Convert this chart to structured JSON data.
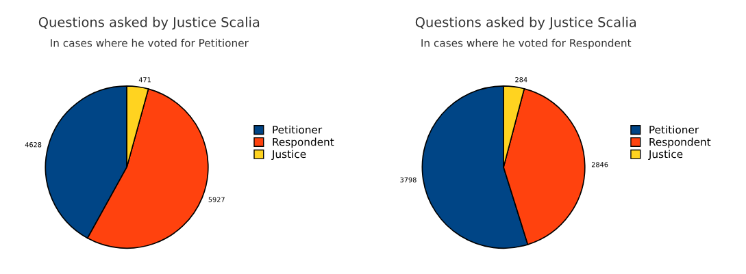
{
  "chart_data": [
    {
      "type": "pie",
      "title": "Questions asked by Justice Scalia",
      "subtitle": "In cases where he voted for Petitioner",
      "categories": [
        "Petitioner",
        "Respondent",
        "Justice"
      ],
      "values": [
        4628,
        5927,
        471
      ],
      "colors": [
        "#004586",
        "#ff420e",
        "#ffd320"
      ],
      "data_labels": true,
      "legend": "right"
    },
    {
      "type": "pie",
      "title": "Questions asked by Justice Scalia",
      "subtitle": "In cases where he voted for Respondent",
      "categories": [
        "Petitioner",
        "Respondent",
        "Justice"
      ],
      "values": [
        3798,
        2846,
        284
      ],
      "colors": [
        "#004586",
        "#ff420e",
        "#ffd320"
      ],
      "data_labels": true,
      "legend": "right"
    }
  ]
}
